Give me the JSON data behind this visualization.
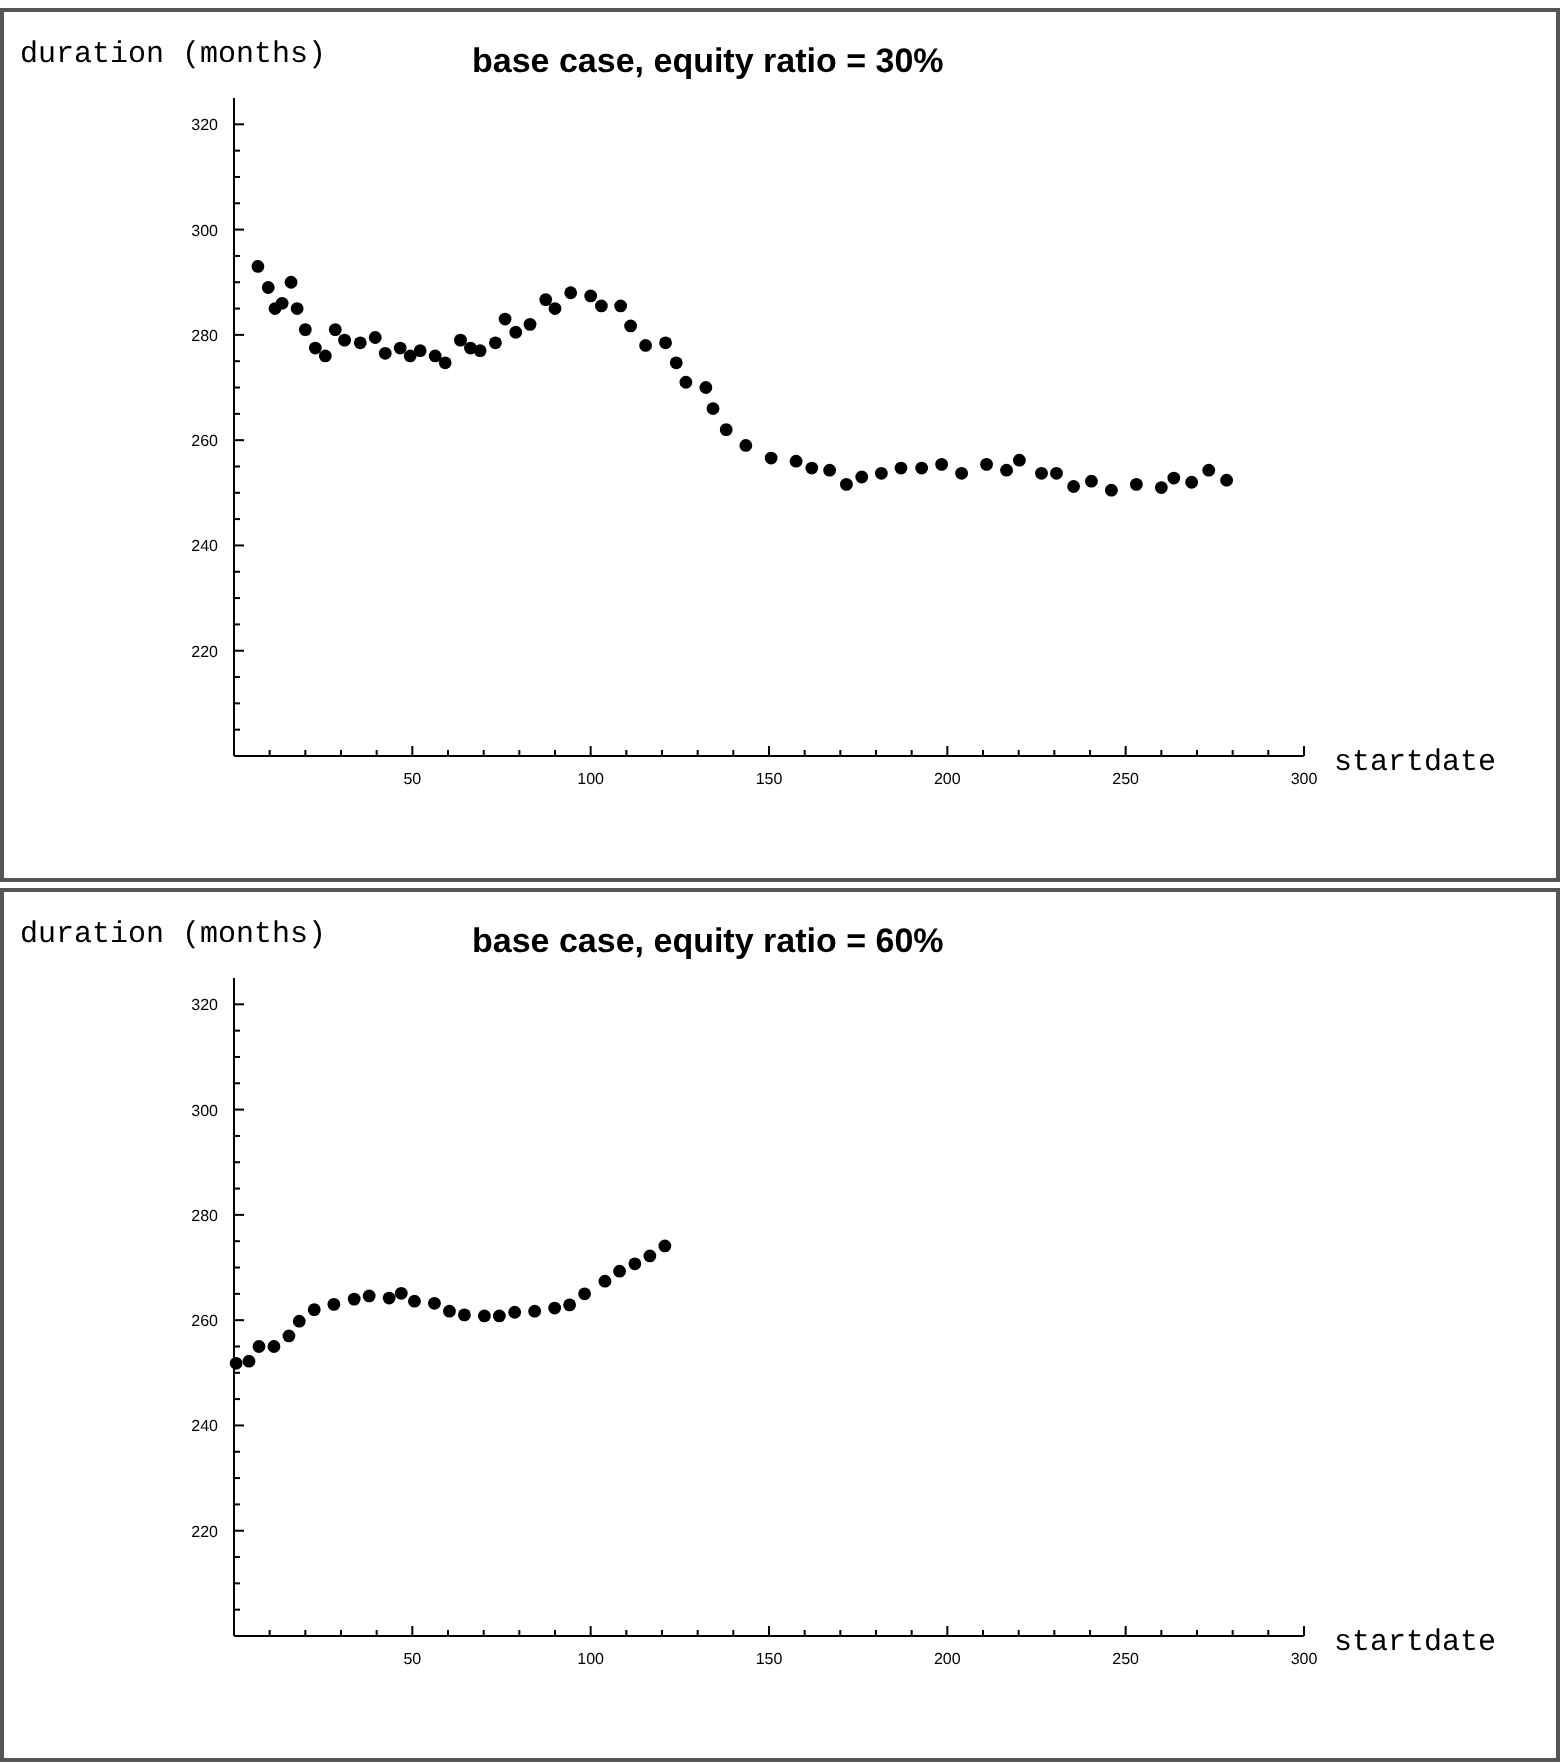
{
  "chart_data": [
    {
      "type": "scatter",
      "title": "base case, equity ratio = 30%",
      "ylabel": "duration (months)",
      "xlabel": "startdate",
      "color": "#000000",
      "marker": "circle",
      "xlim": [
        0,
        300
      ],
      "ylim": [
        200,
        325
      ],
      "xticks": [
        {
          "value": 10,
          "label": null
        },
        {
          "value": 20,
          "label": null
        },
        {
          "value": 30,
          "label": null
        },
        {
          "value": 40,
          "label": null
        },
        50,
        {
          "value": 60,
          "label": null
        },
        {
          "value": 70,
          "label": null
        },
        {
          "value": 80,
          "label": null
        },
        {
          "value": 90,
          "label": null
        },
        100,
        {
          "value": 110,
          "label": null
        },
        {
          "value": 120,
          "label": null
        },
        {
          "value": 130,
          "label": null
        },
        {
          "value": 140,
          "label": null
        },
        150,
        {
          "value": 160,
          "label": null
        },
        {
          "value": 170,
          "label": null
        },
        {
          "value": 180,
          "label": null
        },
        {
          "value": 190,
          "label": null
        },
        200,
        {
          "value": 210,
          "label": null
        },
        {
          "value": 220,
          "label": null
        },
        {
          "value": 230,
          "label": null
        },
        {
          "value": 240,
          "label": null
        },
        250,
        {
          "value": 260,
          "label": null
        },
        {
          "value": 270,
          "label": null
        },
        {
          "value": 280,
          "label": null
        },
        {
          "value": 290,
          "label": null
        },
        300
      ],
      "yticks": [
        {
          "value": 205,
          "label": null
        },
        {
          "value": 210,
          "label": null
        },
        {
          "value": 215,
          "label": null
        },
        220,
        {
          "value": 225,
          "label": null
        },
        {
          "value": 230,
          "label": null
        },
        {
          "value": 235,
          "label": null
        },
        240,
        {
          "value": 245,
          "label": null
        },
        {
          "value": 250,
          "label": null
        },
        {
          "value": 255,
          "label": null
        },
        260,
        {
          "value": 265,
          "label": null
        },
        {
          "value": 270,
          "label": null
        },
        {
          "value": 275,
          "label": null
        },
        280,
        {
          "value": 285,
          "label": null
        },
        {
          "value": 290,
          "label": null
        },
        {
          "value": 295,
          "label": null
        },
        300,
        {
          "value": 305,
          "label": null
        },
        {
          "value": 310,
          "label": null
        },
        {
          "value": 315,
          "label": null
        },
        320
      ],
      "x": [
        6.7,
        9.6,
        11.5,
        13.5,
        16,
        17.7,
        20,
        22.8,
        25.6,
        28.4,
        31,
        35.4,
        39.6,
        42.4,
        46.6,
        49.4,
        52.2,
        56.4,
        59.2,
        63.5,
        66.3,
        69,
        73.3,
        76,
        79,
        83,
        87.4,
        90,
        94.4,
        100,
        103,
        108.4,
        111.2,
        115.4,
        121,
        124,
        126.7,
        132.3,
        134.3,
        138,
        143.5,
        150.6,
        157.6,
        162,
        167,
        171.7,
        176,
        181.5,
        187,
        192.8,
        198.4,
        204,
        211,
        216.6,
        220.2,
        226.4,
        230.6,
        235.4,
        240.4,
        246,
        253,
        260,
        263.5,
        268.5,
        273.3,
        278.3
      ],
      "values": [
        293,
        289,
        285,
        286,
        290,
        285,
        281,
        277.5,
        276,
        281,
        279,
        278.5,
        279.5,
        276.5,
        277.5,
        276,
        277,
        276,
        274.7,
        279,
        277.5,
        277,
        278.5,
        283,
        280.5,
        282,
        286.7,
        285,
        288,
        287.4,
        285.5,
        285.5,
        281.7,
        278,
        278.5,
        274.7,
        271,
        270,
        266,
        262,
        259,
        256.6,
        256,
        254.7,
        254.3,
        251.6,
        253,
        253.7,
        254.7,
        254.7,
        255.4,
        253.7,
        255.4,
        254.3,
        256.2,
        253.7,
        253.7,
        251.2,
        252.2,
        250.5,
        251.6,
        251,
        252.8,
        252,
        254.3,
        252.4
      ]
    },
    {
      "type": "scatter",
      "title": "base case, equity ratio = 60%",
      "ylabel": "duration (months)",
      "xlabel": "startdate",
      "color": "#000000",
      "marker": "circle",
      "xlim": [
        0,
        300
      ],
      "ylim": [
        200,
        325
      ],
      "xticks": [
        {
          "value": 10,
          "label": null
        },
        {
          "value": 20,
          "label": null
        },
        {
          "value": 30,
          "label": null
        },
        {
          "value": 40,
          "label": null
        },
        50,
        {
          "value": 60,
          "label": null
        },
        {
          "value": 70,
          "label": null
        },
        {
          "value": 80,
          "label": null
        },
        {
          "value": 90,
          "label": null
        },
        100,
        {
          "value": 110,
          "label": null
        },
        {
          "value": 120,
          "label": null
        },
        {
          "value": 130,
          "label": null
        },
        {
          "value": 140,
          "label": null
        },
        150,
        {
          "value": 160,
          "label": null
        },
        {
          "value": 170,
          "label": null
        },
        {
          "value": 180,
          "label": null
        },
        {
          "value": 190,
          "label": null
        },
        200,
        {
          "value": 210,
          "label": null
        },
        {
          "value": 220,
          "label": null
        },
        {
          "value": 230,
          "label": null
        },
        {
          "value": 240,
          "label": null
        },
        250,
        {
          "value": 260,
          "label": null
        },
        {
          "value": 270,
          "label": null
        },
        {
          "value": 280,
          "label": null
        },
        {
          "value": 290,
          "label": null
        },
        300
      ],
      "yticks": [
        {
          "value": 205,
          "label": null
        },
        {
          "value": 210,
          "label": null
        },
        {
          "value": 215,
          "label": null
        },
        220,
        {
          "value": 225,
          "label": null
        },
        {
          "value": 230,
          "label": null
        },
        {
          "value": 235,
          "label": null
        },
        240,
        {
          "value": 245,
          "label": null
        },
        {
          "value": 250,
          "label": null
        },
        {
          "value": 255,
          "label": null
        },
        260,
        {
          "value": 265,
          "label": null
        },
        {
          "value": 270,
          "label": null
        },
        {
          "value": 275,
          "label": null
        },
        280,
        {
          "value": 285,
          "label": null
        },
        {
          "value": 290,
          "label": null
        },
        {
          "value": 295,
          "label": null
        },
        300,
        {
          "value": 305,
          "label": null
        },
        {
          "value": 310,
          "label": null
        },
        {
          "value": 315,
          "label": null
        },
        320
      ],
      "x": [
        0.6,
        4.2,
        7,
        11.2,
        15.4,
        18.3,
        22.5,
        28,
        33.7,
        37.9,
        43.5,
        46.9,
        50.6,
        56.2,
        60.4,
        64.6,
        70.2,
        74.4,
        78.7,
        84.3,
        89.9,
        94.1,
        98.3,
        104,
        108.1,
        112.4,
        116.6,
        120.8
      ],
      "values": [
        251.8,
        252.2,
        255,
        255,
        257,
        259.8,
        262,
        263,
        264,
        264.6,
        264.2,
        265.1,
        263.6,
        263.2,
        261.7,
        261,
        260.8,
        260.8,
        261.5,
        261.7,
        262.3,
        262.9,
        265,
        267.4,
        269.3,
        270.7,
        272.2,
        274.1
      ]
    }
  ]
}
